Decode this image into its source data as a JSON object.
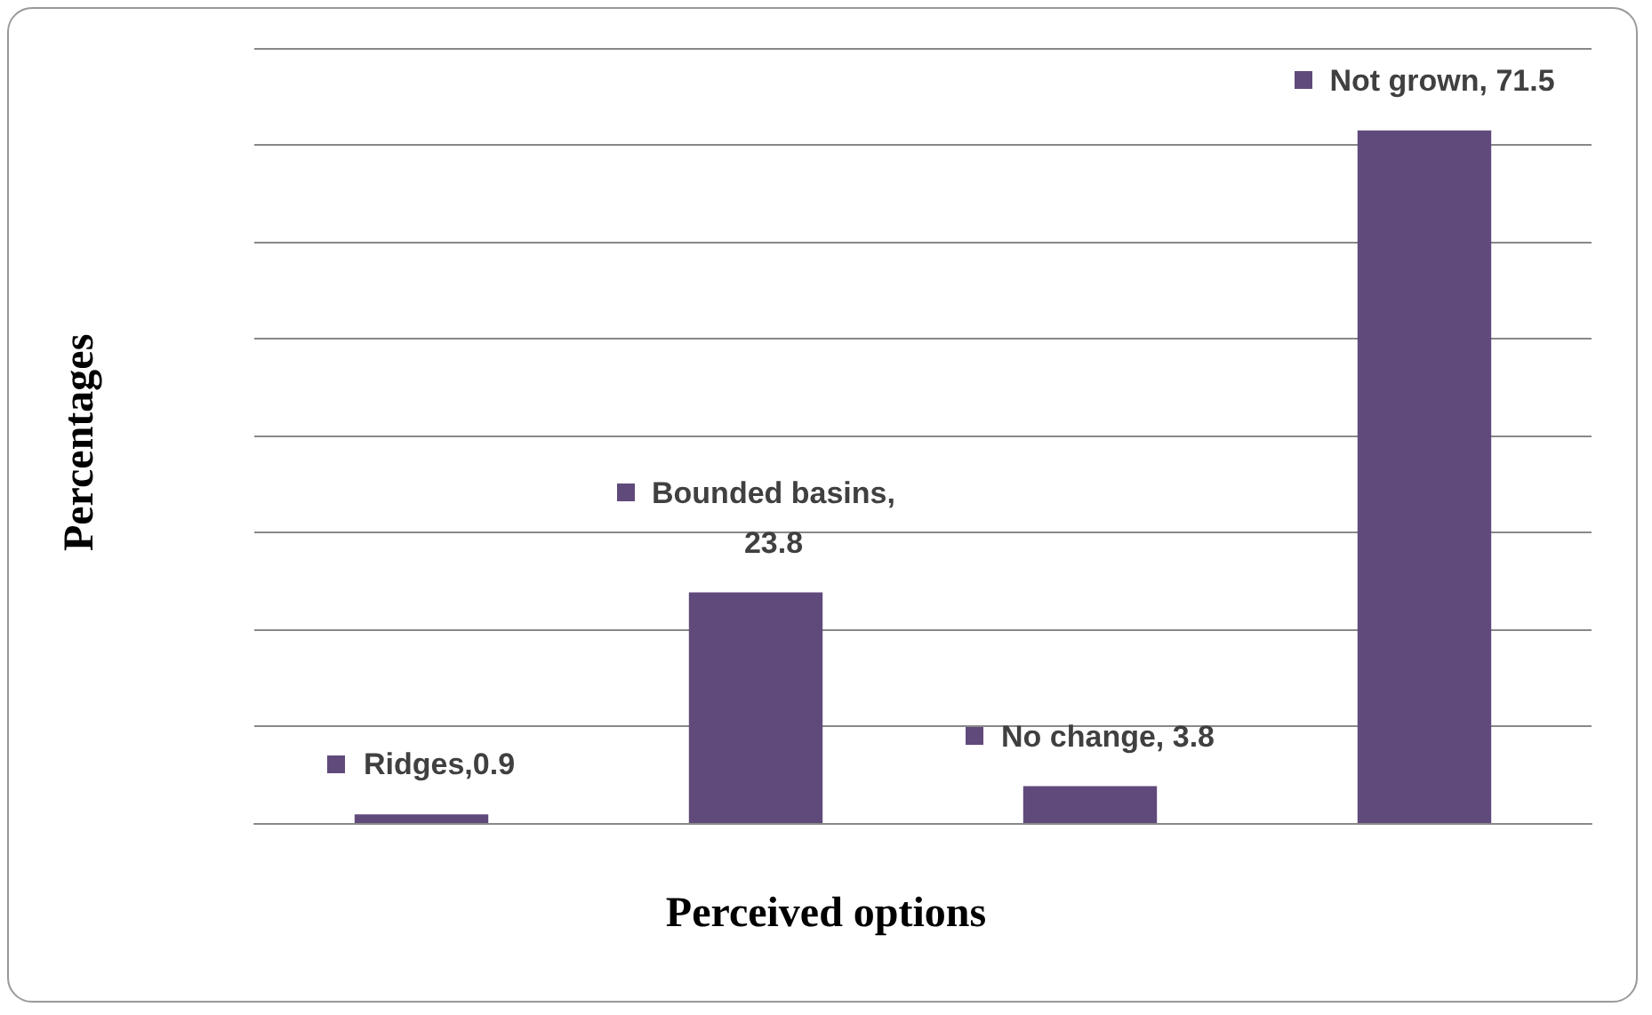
{
  "chart_data": {
    "type": "bar",
    "xlabel": "Perceived options",
    "ylabel": "Percentages",
    "categories": [
      null,
      null,
      null,
      null
    ],
    "values": [
      0.9,
      23.8,
      3.8,
      71.5
    ],
    "value_labels": [
      "Ridges,0.9",
      "Bounded basins, 23.8",
      "No change, 3.8",
      "Not grown, 71.5"
    ],
    "color": "#604a7b",
    "ylim": [
      0,
      80
    ],
    "yticks": [
      {
        "value": 0,
        "label": null
      },
      {
        "value": 10,
        "label": null
      },
      {
        "value": 20,
        "label": null
      },
      {
        "value": 30,
        "label": null
      },
      {
        "value": 40,
        "label": null
      },
      {
        "value": 50,
        "label": null
      },
      {
        "value": 60,
        "label": null
      },
      {
        "value": 70,
        "label": null
      },
      {
        "value": 80,
        "label": null
      }
    ],
    "grid": "y",
    "tick_labels": false
  }
}
